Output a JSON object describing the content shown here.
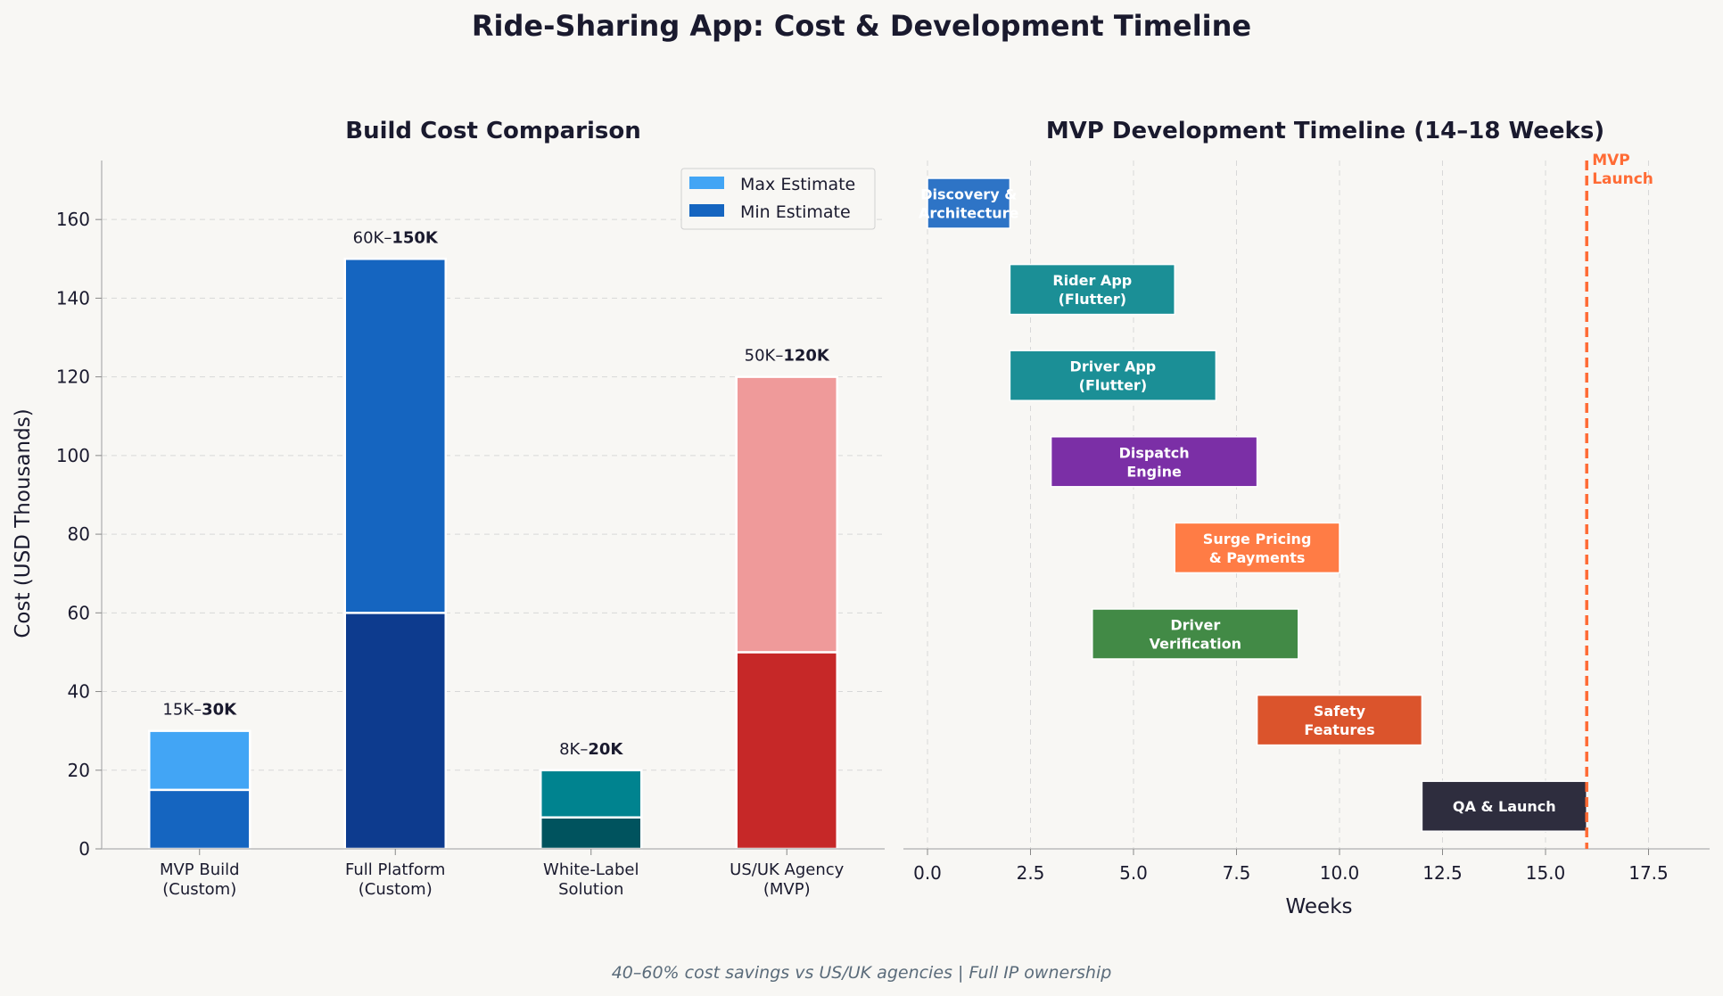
{
  "title": "Ride-Sharing App: Cost & Development Timeline",
  "footer": "40–60% cost savings vs US/UK agencies  |  Full IP ownership",
  "chart_data": [
    {
      "type": "bar",
      "title": "Build Cost Comparison",
      "ylabel": "Cost (USD Thousands)",
      "xlabel": "",
      "ylim": [
        0,
        175
      ],
      "yticks": [
        0,
        20,
        40,
        60,
        80,
        100,
        120,
        140,
        160
      ],
      "grid": true,
      "legend": {
        "placement": "top-right",
        "entries": [
          "Max Estimate",
          "Min Estimate"
        ]
      },
      "categories": [
        [
          "MVP Build",
          "(Custom)"
        ],
        [
          "Full Platform",
          "(Custom)"
        ],
        [
          "White-Label",
          "Solution"
        ],
        [
          "US/UK Agency",
          "(MVP)"
        ]
      ],
      "series": [
        {
          "name": "Min Estimate",
          "values": [
            15,
            60,
            8,
            50
          ]
        },
        {
          "name": "Max Estimate",
          "values": [
            30,
            150,
            20,
            120
          ]
        }
      ],
      "bar_labels": [
        {
          "pre": "15K–",
          "bold": "30K"
        },
        {
          "pre": "60K–",
          "bold": "150K"
        },
        {
          "pre": "8K–",
          "bold": "20K"
        },
        {
          "pre": "50K–",
          "bold": "120K"
        }
      ],
      "colors": {
        "min": [
          "#1565c0",
          "#0d3b8e",
          "#00535e",
          "#c62828"
        ],
        "max": [
          "#42a5f5",
          "#1565c0",
          "#00838f",
          "#ef9a9a"
        ],
        "legend_max": "#42a5f5",
        "legend_min": "#1565c0"
      }
    },
    {
      "type": "gantt",
      "title": "MVP Development Timeline (14–18 Weeks)",
      "xlabel": "Weeks",
      "xlim": [
        0,
        19
      ],
      "xticks": [
        "0.0",
        "2.5",
        "5.0",
        "7.5",
        "10.0",
        "12.5",
        "15.0",
        "17.5"
      ],
      "grid": true,
      "tasks": [
        {
          "label": [
            "Discovery &",
            "Architecture"
          ],
          "start": 0,
          "end": 2,
          "color": "#2e74c6"
        },
        {
          "label": [
            "Rider App",
            "(Flutter)"
          ],
          "start": 2,
          "end": 6,
          "color": "#1b8f96"
        },
        {
          "label": [
            "Driver App",
            "(Flutter)"
          ],
          "start": 2,
          "end": 7,
          "color": "#1b8f96"
        },
        {
          "label": [
            "Dispatch",
            "Engine"
          ],
          "start": 3,
          "end": 8,
          "color": "#7b2fa6"
        },
        {
          "label": [
            "Surge Pricing",
            "& Payments"
          ],
          "start": 6,
          "end": 10,
          "color": "#ff7c45"
        },
        {
          "label": [
            "Driver",
            "Verification"
          ],
          "start": 4,
          "end": 9,
          "color": "#428a46"
        },
        {
          "label": [
            "Safety",
            "Features"
          ],
          "start": 8,
          "end": 12,
          "color": "#db542c"
        },
        {
          "label": [
            "QA & Launch"
          ],
          "start": 12,
          "end": 16,
          "color": "#2e2d3e"
        }
      ],
      "milestone": {
        "week": 16,
        "label": [
          "MVP",
          "Launch"
        ],
        "color": "#ff6b35"
      }
    }
  ]
}
